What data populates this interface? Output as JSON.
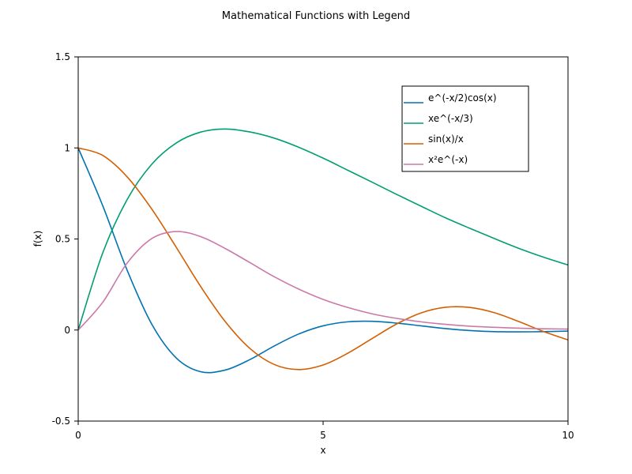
{
  "chart_data": {
    "type": "line",
    "title": "Mathematical Functions with Legend",
    "xlabel": "x",
    "ylabel": "f(x)",
    "xlim": [
      0,
      10
    ],
    "ylim": [
      -0.5,
      1.5
    ],
    "x_ticks": [
      {
        "value": 0,
        "label": "0"
      },
      {
        "value": 5,
        "label": "5"
      },
      {
        "value": 10,
        "label": "10"
      }
    ],
    "y_ticks": [
      {
        "value": -0.5,
        "label": "-0.5"
      },
      {
        "value": 0,
        "label": "0"
      },
      {
        "value": 0.5,
        "label": "0.5"
      },
      {
        "value": 1,
        "label": "1"
      },
      {
        "value": 1.5,
        "label": "1.5"
      }
    ],
    "grid": false,
    "legend_position": "top-right",
    "x": [
      0,
      0.5,
      1,
      1.5,
      2,
      2.5,
      3,
      3.5,
      4,
      4.5,
      5,
      5.5,
      6,
      6.5,
      7,
      7.5,
      8,
      8.5,
      9,
      9.5,
      10
    ],
    "series": [
      {
        "name": "e^(-x/2)cos(x)",
        "color": "#0072b2",
        "values": [
          1.0,
          0.683,
          0.328,
          0.033,
          -0.153,
          -0.229,
          -0.22,
          -0.163,
          -0.088,
          -0.022,
          0.023,
          0.045,
          0.048,
          0.038,
          0.023,
          0.008,
          -0.003,
          -0.009,
          -0.01,
          -0.009,
          -0.006
        ]
      },
      {
        "name": "xe^(-x/3)",
        "color": "#009e73",
        "values": [
          0.0,
          0.423,
          0.717,
          0.91,
          1.027,
          1.087,
          1.104,
          1.088,
          1.054,
          1.004,
          0.944,
          0.878,
          0.812,
          0.745,
          0.68,
          0.616,
          0.558,
          0.502,
          0.448,
          0.4,
          0.357
        ]
      },
      {
        "name": "sin(x)/x",
        "color": "#d55e00",
        "values": [
          1.0,
          0.959,
          0.841,
          0.665,
          0.455,
          0.239,
          0.047,
          -0.1,
          -0.189,
          -0.217,
          -0.192,
          -0.128,
          -0.047,
          0.033,
          0.094,
          0.125,
          0.124,
          0.095,
          0.046,
          -0.008,
          -0.054
        ]
      },
      {
        "name": "x²e^(-x)",
        "color": "#cc79a7",
        "values": [
          0.0,
          0.152,
          0.368,
          0.502,
          0.541,
          0.513,
          0.448,
          0.371,
          0.293,
          0.225,
          0.168,
          0.124,
          0.089,
          0.064,
          0.045,
          0.031,
          0.021,
          0.015,
          0.01,
          0.007,
          0.005
        ]
      }
    ]
  }
}
